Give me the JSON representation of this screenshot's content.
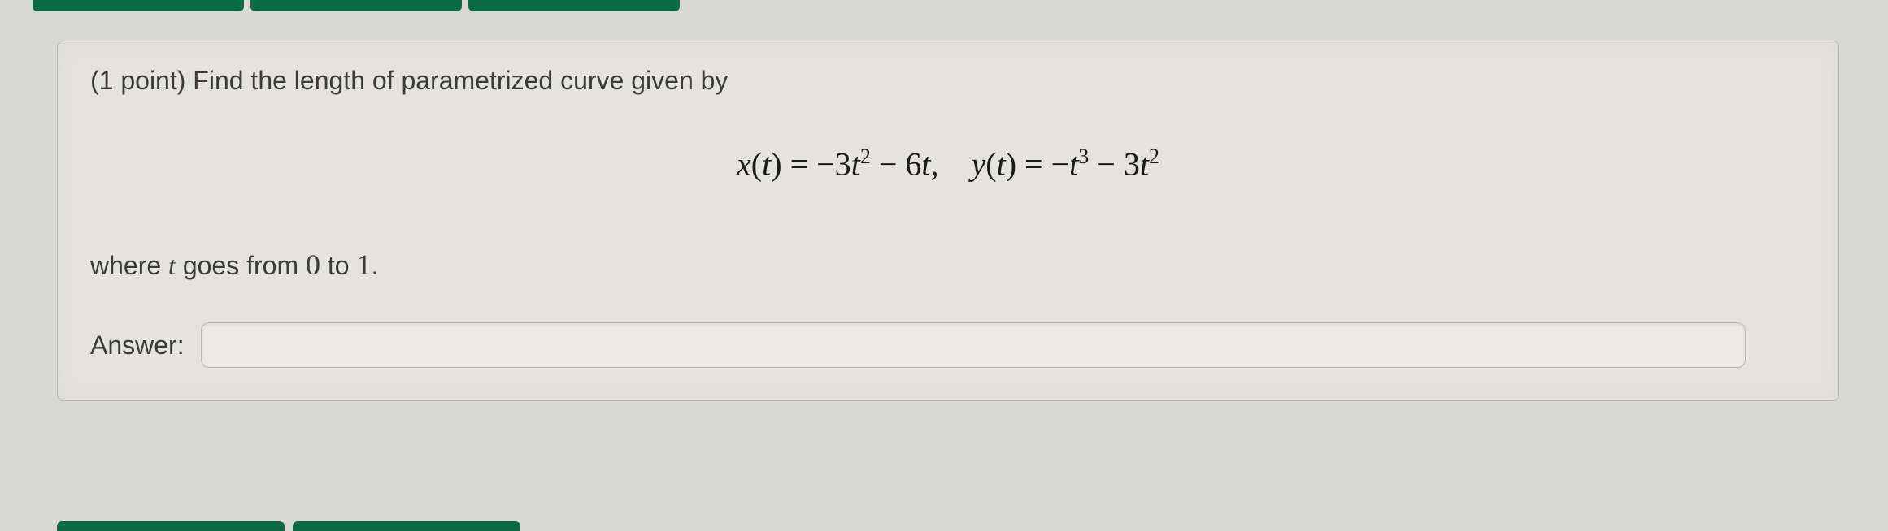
{
  "topTabs": {
    "count": 3,
    "color": "#0d6b4a"
  },
  "bottomTabs": {
    "count": 2,
    "color": "#0d6b4a"
  },
  "question": {
    "points_prefix": "(1 point) ",
    "prompt": "Find the length of parametrized curve given by",
    "formula_html": "<span class='it'>x</span><span class='rm'>(</span><span class='it'>t</span><span class='rm'>)</span> <span class='rm'>=</span> <span class='rm'>−3</span><span class='it'>t</span><sup>2</sup> <span class='rm'>− 6</span><span class='it'>t</span><span class='rm'>,</span>&nbsp;&nbsp;&nbsp;&nbsp;<span class='it'>y</span><span class='rm'>(</span><span class='it'>t</span><span class='rm'>)</span> <span class='rm'>=</span> <span class='rm'>−</span><span class='it'>t</span><sup>3</sup> <span class='rm'>− 3</span><span class='it'>t</span><sup>2</sup>",
    "formula_plain": "x(t) = -3t^2 - 6t,   y(t) = -t^3 - 3t^2",
    "range_prefix": "where ",
    "range_var": "t",
    "range_mid": " goes from ",
    "range_from": "0",
    "range_to_word": " to ",
    "range_to": "1",
    "range_suffix": ".",
    "answer_label": "Answer:",
    "answer_value": ""
  },
  "style": {
    "background": "#d8d8d5",
    "box_background": "#e4e3df",
    "box_border": "#b8b8b3",
    "text_color": "#3a3a38",
    "formula_color": "#1a1a1a",
    "input_background": "#eceae6",
    "font_body": "Arial",
    "font_math": "Times New Roman",
    "prompt_fontsize": 32,
    "formula_fontsize": 40
  }
}
